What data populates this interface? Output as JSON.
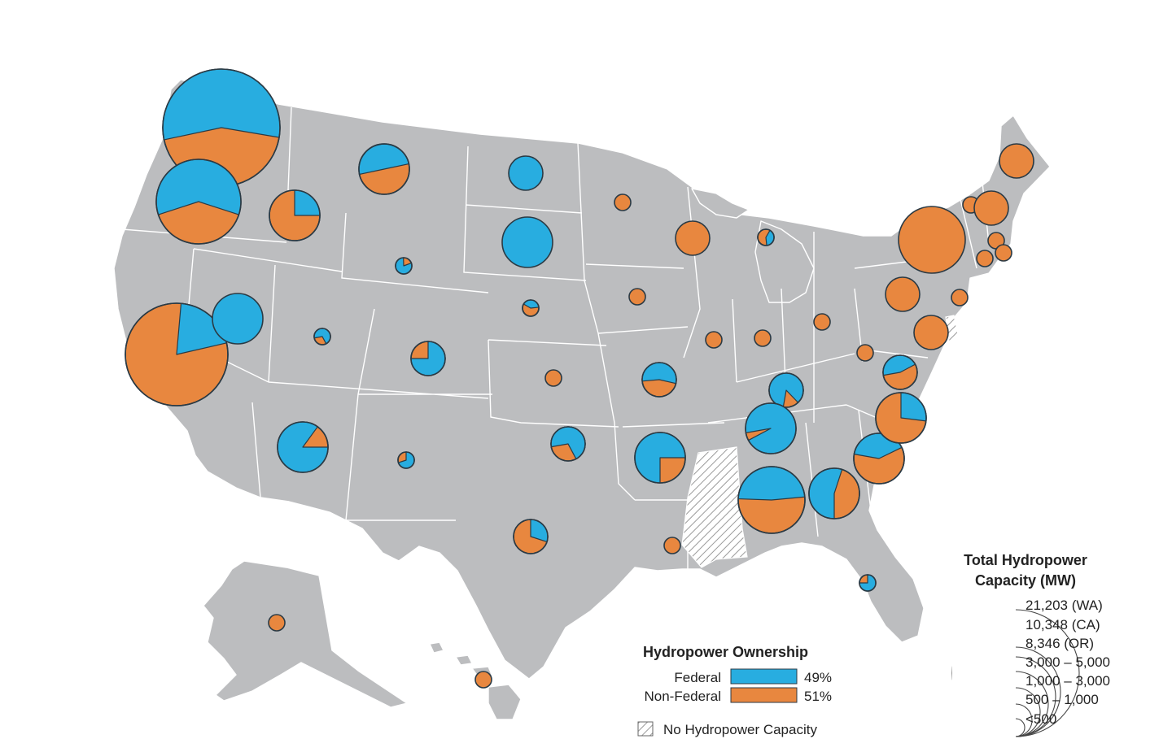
{
  "colors": {
    "federal": "#28ade0",
    "non_federal": "#e8873f",
    "land": "#bcbdbf",
    "border": "#ffffff",
    "outline": "#2b3a44"
  },
  "ownership_legend": {
    "title": "Hydropower Ownership",
    "federal_label": "Federal",
    "federal_percent": "49%",
    "non_federal_label": "Non-Federal",
    "non_federal_percent": "51%",
    "no_capacity_label": "No Hydropower Capacity"
  },
  "capacity_legend": {
    "title_line1": "Total Hydropower",
    "title_line2": "Capacity (MW)",
    "classes": [
      "21,203 (WA)",
      "10,348 (CA)",
      "8,346 (OR)",
      "3,000 – 5,000",
      "1,000 – 3,000",
      "500 – 1,000",
      "<500"
    ]
  },
  "no_hydropower_states": [
    "MS",
    "DE"
  ],
  "chart_data": {
    "type": "pie-map",
    "series": [
      "Federal",
      "Non-Federal"
    ],
    "states": [
      {
        "state": "WA",
        "capacity_class": "21,203 (WA)",
        "federal_share": 0.56
      },
      {
        "state": "OR",
        "capacity_class": "8,346 (OR)",
        "federal_share": 0.6
      },
      {
        "state": "CA",
        "capacity_class": "10,348 (CA)",
        "federal_share": 0.2
      },
      {
        "state": "ID",
        "capacity_class": "1,000 – 3,000",
        "federal_share": 0.25
      },
      {
        "state": "MT",
        "capacity_class": "1,000 – 3,000",
        "federal_share": 0.5
      },
      {
        "state": "NV",
        "capacity_class": "1,000 – 3,000",
        "federal_share": 1.0
      },
      {
        "state": "AZ",
        "capacity_class": "1,000 – 3,000",
        "federal_share": 0.85
      },
      {
        "state": "WY",
        "capacity_class": "<500",
        "federal_share": 0.8
      },
      {
        "state": "UT",
        "capacity_class": "<500",
        "federal_share": 0.7
      },
      {
        "state": "CO",
        "capacity_class": "500 – 1,000",
        "federal_share": 0.75
      },
      {
        "state": "NM",
        "capacity_class": "<500",
        "federal_share": 0.7
      },
      {
        "state": "ND",
        "capacity_class": "500 – 1,000",
        "federal_share": 1.0
      },
      {
        "state": "SD",
        "capacity_class": "1,000 – 3,000",
        "federal_share": 1.0
      },
      {
        "state": "NE",
        "capacity_class": "<500",
        "federal_share": 0.4
      },
      {
        "state": "KS",
        "capacity_class": "<500",
        "federal_share": 0.0
      },
      {
        "state": "OK",
        "capacity_class": "500 – 1,000",
        "federal_share": 0.7
      },
      {
        "state": "TX",
        "capacity_class": "500 – 1,000",
        "federal_share": 0.3
      },
      {
        "state": "MN",
        "capacity_class": "<500",
        "federal_share": 0.0
      },
      {
        "state": "IA",
        "capacity_class": "<500",
        "federal_share": 0.0
      },
      {
        "state": "MO",
        "capacity_class": "500 – 1,000",
        "federal_share": 0.55
      },
      {
        "state": "AR",
        "capacity_class": "1,000 – 3,000",
        "federal_share": 0.75
      },
      {
        "state": "LA",
        "capacity_class": "<500",
        "federal_share": 0.0
      },
      {
        "state": "WI",
        "capacity_class": "500 – 1,000",
        "federal_share": 0.0
      },
      {
        "state": "IL",
        "capacity_class": "<500",
        "federal_share": 0.0
      },
      {
        "state": "MI",
        "capacity_class": "<500",
        "federal_share": 0.4
      },
      {
        "state": "IN",
        "capacity_class": "<500",
        "federal_share": 0.0
      },
      {
        "state": "OH",
        "capacity_class": "<500",
        "federal_share": 0.0
      },
      {
        "state": "KY",
        "capacity_class": "500 – 1,000",
        "federal_share": 0.85
      },
      {
        "state": "TN",
        "capacity_class": "1,000 – 3,000",
        "federal_share": 0.95
      },
      {
        "state": "AL",
        "capacity_class": "3,000 – 5,000",
        "federal_share": 0.48
      },
      {
        "state": "GA",
        "capacity_class": "1,000 – 3,000",
        "federal_share": 0.55
      },
      {
        "state": "FL",
        "capacity_class": "<500",
        "federal_share": 0.75
      },
      {
        "state": "SC",
        "capacity_class": "1,000 – 3,000",
        "federal_share": 0.4
      },
      {
        "state": "NC",
        "capacity_class": "1,000 – 3,000",
        "federal_share": 0.27
      },
      {
        "state": "VA",
        "capacity_class": "500 – 1,000",
        "federal_share": 0.45
      },
      {
        "state": "WV",
        "capacity_class": "<500",
        "federal_share": 0.0
      },
      {
        "state": "PA",
        "capacity_class": "500 – 1,000",
        "federal_share": 0.0
      },
      {
        "state": "MD",
        "capacity_class": "500 – 1,000",
        "federal_share": 0.0
      },
      {
        "state": "NY",
        "capacity_class": "3,000 – 5,000",
        "federal_share": 0.0
      },
      {
        "state": "NJ",
        "capacity_class": "<500",
        "federal_share": 0.0
      },
      {
        "state": "VT",
        "capacity_class": "<500",
        "federal_share": 0.0
      },
      {
        "state": "NH",
        "capacity_class": "500 – 1,000",
        "federal_share": 0.0
      },
      {
        "state": "ME",
        "capacity_class": "500 – 1,000",
        "federal_share": 0.0
      },
      {
        "state": "MA",
        "capacity_class": "<500",
        "federal_share": 0.0
      },
      {
        "state": "CT",
        "capacity_class": "<500",
        "federal_share": 0.0
      },
      {
        "state": "RI",
        "capacity_class": "<500",
        "federal_share": 0.0
      },
      {
        "state": "AK",
        "capacity_class": "<500",
        "federal_share": 0.0
      },
      {
        "state": "HI",
        "capacity_class": "<500",
        "federal_share": 0.0
      }
    ]
  }
}
